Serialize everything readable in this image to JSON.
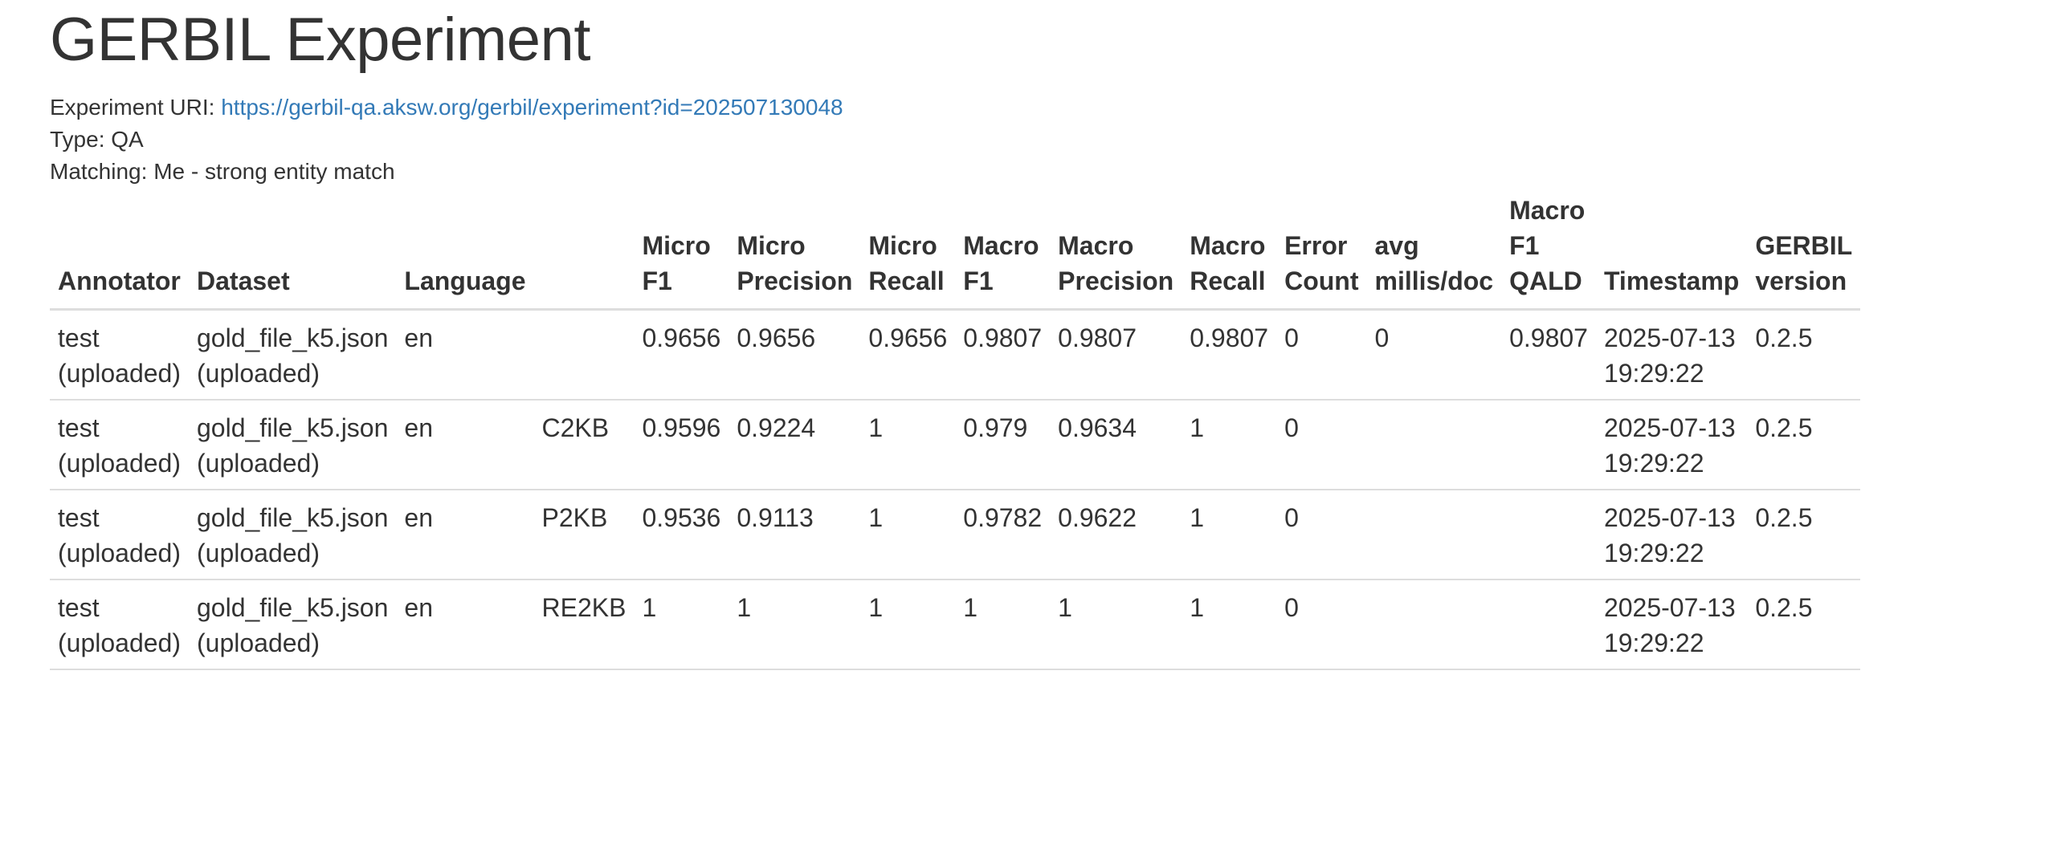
{
  "page": {
    "title": "GERBIL Experiment",
    "experiment_uri_label": "Experiment URI:",
    "experiment_uri": "https://gerbil-qa.aksw.org/gerbil/experiment?id=202507130048",
    "type_label": "Type:",
    "type_value": "QA",
    "matching_label": "Matching:",
    "matching_value": "Me - strong entity match"
  },
  "table": {
    "headers": [
      [
        "Annotator"
      ],
      [
        "Dataset"
      ],
      [
        "Language"
      ],
      [
        ""
      ],
      [
        "Micro",
        "F1"
      ],
      [
        "Micro",
        "Precision"
      ],
      [
        "Micro",
        "Recall"
      ],
      [
        "Macro",
        "F1"
      ],
      [
        "Macro",
        "Precision"
      ],
      [
        "Macro",
        "Recall"
      ],
      [
        "Error",
        "Count"
      ],
      [
        "avg",
        "millis/doc"
      ],
      [
        "Macro",
        "F1",
        "QALD"
      ],
      [
        "Timestamp"
      ],
      [
        "GERBIL",
        "version"
      ]
    ],
    "rows": [
      [
        [
          "test",
          "(uploaded)"
        ],
        [
          "gold_file_k5.json",
          "(uploaded)"
        ],
        [
          "en"
        ],
        [
          ""
        ],
        [
          "0.9656"
        ],
        [
          "0.9656"
        ],
        [
          "0.9656"
        ],
        [
          "0.9807"
        ],
        [
          "0.9807"
        ],
        [
          "0.9807"
        ],
        [
          "0"
        ],
        [
          "0"
        ],
        [
          "0.9807"
        ],
        [
          "2025-07-13",
          "19:29:22"
        ],
        [
          "0.2.5"
        ]
      ],
      [
        [
          "test",
          "(uploaded)"
        ],
        [
          "gold_file_k5.json",
          "(uploaded)"
        ],
        [
          "en"
        ],
        [
          "C2KB"
        ],
        [
          "0.9596"
        ],
        [
          "0.9224"
        ],
        [
          "1"
        ],
        [
          "0.979"
        ],
        [
          "0.9634"
        ],
        [
          "1"
        ],
        [
          "0"
        ],
        [
          ""
        ],
        [
          ""
        ],
        [
          "2025-07-13",
          "19:29:22"
        ],
        [
          "0.2.5"
        ]
      ],
      [
        [
          "test",
          "(uploaded)"
        ],
        [
          "gold_file_k5.json",
          "(uploaded)"
        ],
        [
          "en"
        ],
        [
          "P2KB"
        ],
        [
          "0.9536"
        ],
        [
          "0.9113"
        ],
        [
          "1"
        ],
        [
          "0.9782"
        ],
        [
          "0.9622"
        ],
        [
          "1"
        ],
        [
          "0"
        ],
        [
          ""
        ],
        [
          ""
        ],
        [
          "2025-07-13",
          "19:29:22"
        ],
        [
          "0.2.5"
        ]
      ],
      [
        [
          "test",
          "(uploaded)"
        ],
        [
          "gold_file_k5.json",
          "(uploaded)"
        ],
        [
          "en"
        ],
        [
          "RE2KB"
        ],
        [
          "1"
        ],
        [
          "1"
        ],
        [
          "1"
        ],
        [
          "1"
        ],
        [
          "1"
        ],
        [
          "1"
        ],
        [
          "0"
        ],
        [
          ""
        ],
        [
          ""
        ],
        [
          "2025-07-13",
          "19:29:22"
        ],
        [
          "0.2.5"
        ]
      ]
    ]
  }
}
